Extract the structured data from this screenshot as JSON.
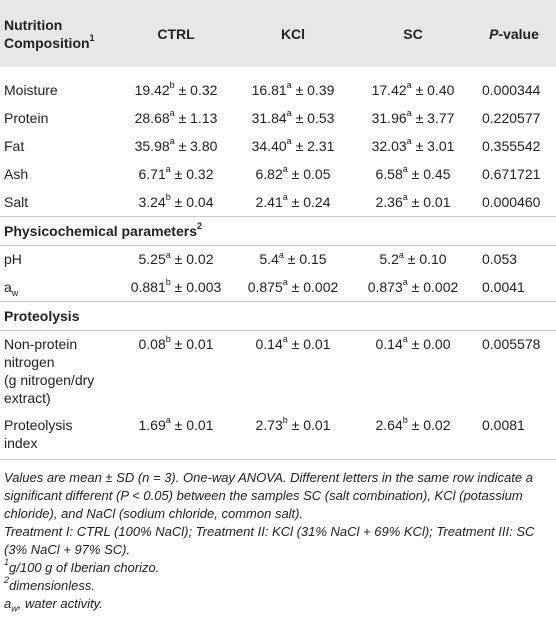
{
  "table": {
    "headers": {
      "first_line1": "Nutrition",
      "first_line2": "Composition",
      "first_sup": "1",
      "ctrl": "CTRL",
      "kcl": "KCl",
      "sc": "SC",
      "p_italic": "P",
      "p_rest": "-value"
    },
    "pm": "±",
    "nutrition_rows": [
      {
        "name": "Moisture",
        "cells": [
          {
            "mean": "19.42",
            "sup": "b",
            "sd": "0.32"
          },
          {
            "mean": "16.81",
            "sup": "a",
            "sd": "0.39"
          },
          {
            "mean": "17.42",
            "sup": "a",
            "sd": "0.40"
          }
        ],
        "p": "0.000344"
      },
      {
        "name": "Protein",
        "cells": [
          {
            "mean": "28.68",
            "sup": "a",
            "sd": "1.13"
          },
          {
            "mean": "31.84",
            "sup": "a",
            "sd": "0.53"
          },
          {
            "mean": "31.96",
            "sup": "a",
            "sd": "3.77"
          }
        ],
        "p": "0.220577"
      },
      {
        "name": "Fat",
        "cells": [
          {
            "mean": "35.98",
            "sup": "a",
            "sd": "3.80"
          },
          {
            "mean": "34.40",
            "sup": "a",
            "sd": "2.31"
          },
          {
            "mean": "32.03",
            "sup": "a",
            "sd": "3.01"
          }
        ],
        "p": "0.355542"
      },
      {
        "name": "Ash",
        "cells": [
          {
            "mean": "6.71",
            "sup": "a",
            "sd": "0.32"
          },
          {
            "mean": "6.82",
            "sup": "a",
            "sd": "0.05"
          },
          {
            "mean": "6.58",
            "sup": "a",
            "sd": "0.45"
          }
        ],
        "p": "0.671721"
      },
      {
        "name": "Salt",
        "cells": [
          {
            "mean": "3.24",
            "sup": "b",
            "sd": "0.04"
          },
          {
            "mean": "2.41",
            "sup": "a",
            "sd": "0.24"
          },
          {
            "mean": "2.36",
            "sup": "a",
            "sd": "0.01"
          }
        ],
        "p": "0.000460"
      }
    ],
    "section_physchem": {
      "label": "Physicochemical parameters",
      "sup": "2"
    },
    "physchem_rows": [
      {
        "name": "pH",
        "cells": [
          {
            "mean": "5.25",
            "sup": "a",
            "sd": "0.02"
          },
          {
            "mean": "5.4",
            "sup": "a",
            "sd": "0.15"
          },
          {
            "mean": "5.2",
            "sup": "a",
            "sd": "0.10"
          }
        ],
        "p": "0.053"
      },
      {
        "name_main": "a",
        "name_sub": "w",
        "cells": [
          {
            "mean": "0.881",
            "sup": "b",
            "sd": "0.003"
          },
          {
            "mean": "0.875",
            "sup": "a",
            "sd": "0.002"
          },
          {
            "mean": "0.873",
            "sup": "a",
            "sd": "0.002"
          }
        ],
        "p": "0.0041"
      }
    ],
    "section_proteolysis": {
      "label": "Proteolysis"
    },
    "proteolysis_rows": [
      {
        "name_lines": [
          "Non-protein",
          "nitrogen",
          "(g nitrogen/dry",
          "extract)"
        ],
        "cells": [
          {
            "mean": "0.08",
            "sup": "b",
            "sd": "0.01"
          },
          {
            "mean": "0.14",
            "sup": "a",
            "sd": "0.01"
          },
          {
            "mean": "0.14",
            "sup": "a",
            "sd": "0.00"
          }
        ],
        "p": "0.005578"
      },
      {
        "name_lines": [
          "Proteolysis",
          "index"
        ],
        "cells": [
          {
            "mean": "1.69",
            "sup": "a",
            "sd": "0.01"
          },
          {
            "mean": "2.73",
            "sup": "b",
            "sd": "0.01"
          },
          {
            "mean": "2.64",
            "sup": "b",
            "sd": "0.02"
          }
        ],
        "p": "0.0081"
      }
    ]
  },
  "notes": {
    "note1_a": "Values are mean ± SD (n = 3). One-way ANOVA. Different letters in the same row indicate a significant different (",
    "note1_p": "P",
    "note1_b": " < 0.05) between the samples SC (salt combination), KCl (potassium chloride), and NaCl (sodium chloride, common salt).",
    "note2": "Treatment I: CTRL (100% NaCl); Treatment II: KCl (31% NaCl + 69% KCl); Treatment III: SC (3% NaCl + 97% SC).",
    "note3_sup": "1",
    "note3": "g/100 g of Iberian chorizo.",
    "note4_sup": "2",
    "note4": "dimensionless.",
    "note5_main": "a",
    "note5_sub": "w",
    "note5": ", water activity."
  }
}
